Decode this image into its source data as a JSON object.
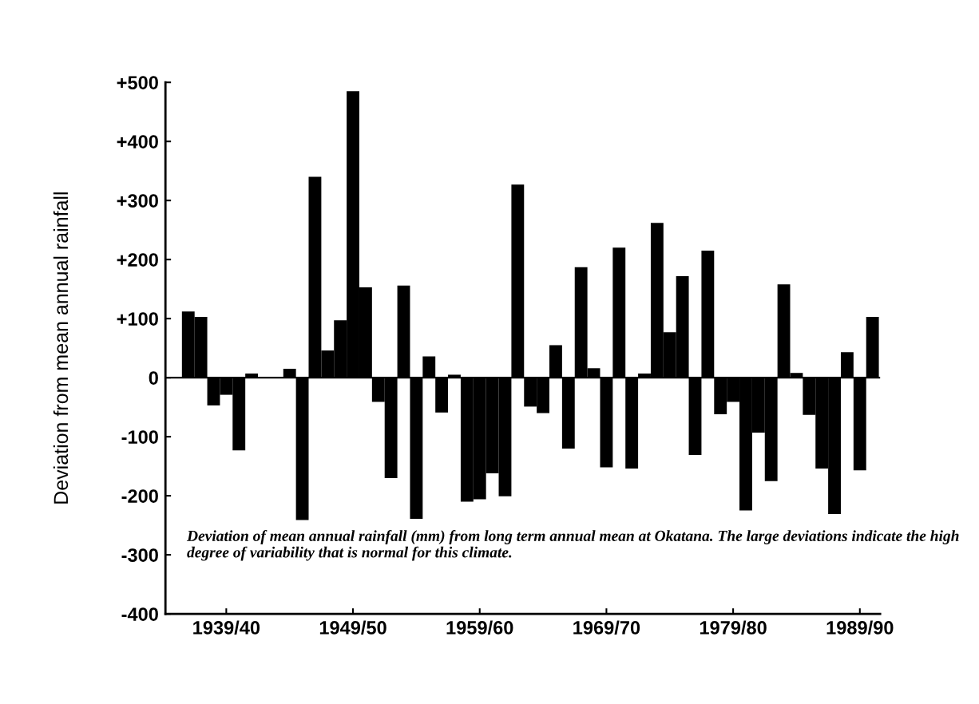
{
  "chart_data": {
    "type": "bar",
    "ylabel": "Deviation from mean annual rainfall",
    "categories": [
      null,
      null,
      null,
      "1939/40",
      null,
      null,
      null,
      null,
      null,
      null,
      null,
      null,
      null,
      "1949/50",
      null,
      null,
      null,
      null,
      null,
      null,
      null,
      null,
      null,
      "1959/60",
      null,
      null,
      null,
      null,
      null,
      null,
      null,
      null,
      null,
      "1969/70",
      null,
      null,
      null,
      null,
      null,
      null,
      null,
      null,
      null,
      "1979/80",
      null,
      null,
      null,
      null,
      null,
      null,
      null,
      null,
      null,
      "1989/90",
      null
    ],
    "values": [
      112,
      103,
      -47,
      -29,
      -123,
      7,
      0,
      0,
      15,
      -241,
      340,
      46,
      97,
      485,
      153,
      -41,
      -170,
      156,
      -239,
      36,
      -59,
      5,
      -210,
      -206,
      -162,
      -201,
      327,
      -49,
      -60,
      55,
      -120,
      187,
      16,
      -152,
      220,
      -154,
      7,
      262,
      77,
      172,
      -131,
      215,
      -62,
      -41,
      -225,
      -93,
      -175,
      158,
      8,
      -63,
      -154,
      -231,
      43,
      -157,
      103
    ],
    "color": "#000000",
    "ylim": [
      -400,
      500
    ],
    "yticks": [
      {
        "value": 500,
        "label": "+500"
      },
      {
        "value": 400,
        "label": "+400"
      },
      {
        "value": 300,
        "label": "+300"
      },
      {
        "value": 200,
        "label": "+200"
      },
      {
        "value": 100,
        "label": "+100"
      },
      0,
      -100,
      -200,
      -300,
      -400
    ],
    "ref_lines": [
      {
        "axis": "y",
        "value": 0,
        "color": "#000000"
      }
    ],
    "annotations": [
      "Deviation of mean annual rainfall (mm) from long term annual mean at Okatana. The large deviations indicate the high degree of variability that is normal for this climate."
    ],
    "grid": false,
    "legend": false
  }
}
